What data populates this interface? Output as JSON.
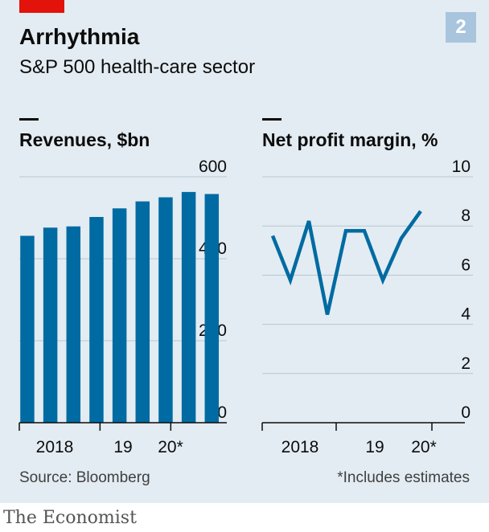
{
  "header": {
    "title": "Arrhythmia",
    "subtitle": "S&P 500 health-care sector",
    "badge": "2"
  },
  "colors": {
    "accent": "#e3120b",
    "bar": "#006ba2",
    "line": "#006ba2",
    "background": "#e3ecf2",
    "badge": "#a8c5dd"
  },
  "footer": {
    "source": "Source: Bloomberg",
    "note": "*Includes estimates",
    "brand": "The Economist"
  },
  "chart_data": [
    {
      "type": "bar",
      "title": "Revenues, $bn",
      "values": [
        456,
        476,
        479,
        502,
        523,
        540,
        550,
        563,
        558
      ],
      "ylim": [
        0,
        600
      ],
      "yticks": [
        0,
        200,
        400,
        600
      ],
      "xtick_labels": [
        "2018",
        "19",
        "20*"
      ],
      "grid": true
    },
    {
      "type": "line",
      "title": "Net profit margin, %",
      "values": [
        7.6,
        5.8,
        8.2,
        4.4,
        7.8,
        7.8,
        5.8,
        7.5,
        8.6
      ],
      "ylim": [
        0,
        10
      ],
      "yticks": [
        0,
        2,
        4,
        6,
        8,
        10
      ],
      "xtick_labels": [
        "2018",
        "19",
        "20*"
      ],
      "grid": true
    }
  ]
}
